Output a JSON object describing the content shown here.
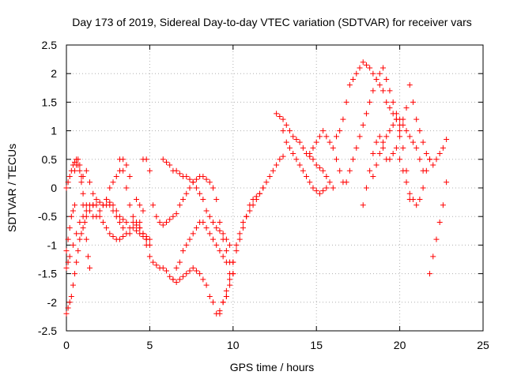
{
  "chart_data": {
    "type": "scatter",
    "title": "Day 173 of 2019, Sidereal Day-to-day VTEC variation (SDTVAR) for receiver vars",
    "xlabel": "GPS time / hours",
    "ylabel": "SDTVAR / TECUs",
    "xlim": [
      0,
      25
    ],
    "ylim": [
      -2.5,
      2.5
    ],
    "x_ticks": [
      "0",
      "5",
      "10",
      "15",
      "20",
      "25"
    ],
    "y_ticks": [
      "2.5",
      "2",
      "1.5",
      "1",
      "0.5",
      "0",
      "-0.5",
      "-1",
      "-1.5",
      "-2",
      "-2.5"
    ],
    "grid": true,
    "marker": "+",
    "color": "#ff0000",
    "series": [
      {
        "x": [
          0.0,
          0.1,
          0.2,
          0.4,
          0.6,
          0.8,
          1.0,
          1.2,
          1.4,
          1.6,
          1.8,
          2.0,
          2.2,
          2.4,
          2.6,
          2.8,
          3.0,
          3.2,
          3.4,
          3.6,
          3.8,
          4.0,
          4.2,
          4.4,
          4.6,
          4.8,
          5.0,
          5.2,
          5.4,
          5.6,
          5.8,
          6.0,
          6.2,
          6.4,
          6.6,
          6.8,
          7.0,
          7.2,
          7.4,
          7.6,
          7.8,
          8.0,
          8.2,
          8.4,
          8.6,
          8.8,
          9.0,
          9.2,
          9.4,
          9.6,
          9.8,
          10.0
        ],
        "y": [
          -1.4,
          -1.3,
          -1.2,
          -1.0,
          -0.8,
          -0.6,
          -0.5,
          -0.4,
          -0.3,
          -0.3,
          -0.2,
          -0.25,
          -0.3,
          -0.2,
          -0.3,
          -0.4,
          -0.5,
          -0.6,
          -0.7,
          -0.8,
          -0.8,
          -0.7,
          -0.75,
          -0.8,
          -0.85,
          -0.9,
          -1.0,
          -1.3,
          -1.35,
          -1.4,
          -1.4,
          -1.45,
          -1.55,
          -1.6,
          -1.65,
          -1.6,
          -1.55,
          -1.5,
          -1.45,
          -1.4,
          -1.45,
          -1.5,
          -1.6,
          -1.7,
          -1.9,
          -2.0,
          -2.2,
          -2.15,
          -2.0,
          -1.9,
          -1.7,
          -1.5
        ]
      },
      {
        "x": [
          0.0,
          0.1,
          0.2,
          0.3,
          0.4,
          0.5,
          0.6,
          0.7,
          0.8,
          0.9,
          1.0,
          1.2,
          1.4,
          1.6,
          1.8,
          2.0,
          2.2,
          2.4,
          2.6,
          2.8,
          3.0,
          3.2,
          3.4,
          3.6,
          3.8,
          4.0,
          4.2,
          4.4,
          4.6,
          4.8,
          5.0
        ],
        "y": [
          0.0,
          0.1,
          0.2,
          0.3,
          0.4,
          0.45,
          0.5,
          0.4,
          0.3,
          0.1,
          -0.1,
          -0.3,
          -0.4,
          -0.5,
          -0.5,
          -0.4,
          -0.3,
          -0.2,
          -0.25,
          -0.3,
          -0.4,
          -0.5,
          -0.55,
          -0.6,
          -0.7,
          -0.6,
          -0.65,
          -0.7,
          -0.8,
          -0.85,
          -0.9
        ]
      },
      {
        "x": [
          0.0,
          0.1,
          0.2,
          0.3,
          0.4,
          0.5,
          0.6,
          0.7,
          0.8,
          0.9,
          1.0,
          1.2,
          1.4,
          1.6
        ],
        "y": [
          -2.2,
          -2.1,
          -2.0,
          -1.9,
          -1.7,
          -1.5,
          -1.3,
          -1.1,
          -0.9,
          -0.8,
          -0.7,
          -0.5,
          -0.4,
          -0.3
        ]
      },
      {
        "x": [
          0.0,
          0.1,
          0.2,
          0.3,
          0.4,
          0.5
        ],
        "y": [
          -1.1,
          -0.9,
          -0.7,
          -0.5,
          -0.4,
          -0.3
        ]
      },
      {
        "x": [
          0.5,
          0.6,
          0.7,
          0.8,
          0.9,
          1.0,
          1.1,
          1.2,
          1.3,
          1.4
        ],
        "y": [
          0.3,
          0.4,
          0.5,
          0.4,
          0.2,
          -0.3,
          -0.6,
          -0.9,
          -1.2,
          -1.4
        ]
      },
      {
        "x": [
          1.0,
          1.2,
          1.4,
          1.6,
          1.8,
          2.0,
          2.2,
          2.4,
          2.6,
          2.8,
          3.0,
          3.2,
          3.4
        ],
        "y": [
          0.2,
          0.3,
          0.1,
          -0.1,
          -0.3,
          -0.5,
          -0.6,
          -0.7,
          -0.8,
          -0.85,
          -0.9,
          -0.9,
          -0.85
        ]
      },
      {
        "x": [
          2.4,
          2.6,
          2.8,
          3.0,
          3.2,
          3.4,
          3.6,
          3.8
        ],
        "y": [
          -0.3,
          0.0,
          0.1,
          0.2,
          0.3,
          0.5,
          0.4,
          0.2
        ]
      },
      {
        "x": [
          3.2,
          3.4,
          3.6,
          3.8,
          4.0,
          4.2,
          4.4,
          4.6,
          4.8
        ],
        "y": [
          0.5,
          0.3,
          0.0,
          -0.3,
          -0.5,
          -0.6,
          -0.7,
          -0.8,
          -0.9
        ]
      },
      {
        "x": [
          4.4,
          4.6,
          4.8,
          5.0
        ],
        "y": [
          -0.6,
          -0.8,
          -1.0,
          -1.2
        ]
      },
      {
        "x": [
          4.2,
          4.4,
          4.6
        ],
        "y": [
          -0.2,
          -0.3,
          -0.4
        ]
      },
      {
        "x": [
          4.6,
          4.8,
          5.0,
          5.2,
          5.4,
          5.6,
          5.8,
          6.0,
          6.2,
          6.4,
          6.6,
          6.8,
          7.0,
          7.2,
          7.4,
          7.6,
          7.8,
          8.0,
          8.2,
          8.4,
          8.6,
          8.8,
          9.0,
          9.2,
          9.4,
          9.6,
          9.8,
          10.0
        ],
        "y": [
          0.5,
          0.5,
          0.3,
          -0.3,
          -0.5,
          -0.6,
          -0.65,
          -0.6,
          -0.55,
          -0.5,
          -0.45,
          -0.3,
          -0.2,
          -0.1,
          0.0,
          0.1,
          0.15,
          0.2,
          0.2,
          0.15,
          0.1,
          0.0,
          -0.2,
          -0.6,
          -0.9,
          -1.1,
          -1.3,
          -1.5
        ]
      },
      {
        "x": [
          5.8,
          6.0,
          6.2,
          6.4,
          6.6,
          6.8,
          7.0,
          7.2,
          7.4,
          7.6,
          7.8,
          8.0,
          8.2,
          8.4,
          8.6,
          8.8,
          9.0,
          9.2,
          9.4,
          9.6,
          9.8
        ],
        "y": [
          0.5,
          0.45,
          0.4,
          0.3,
          0.3,
          0.25,
          0.2,
          0.2,
          0.15,
          0.1,
          0.0,
          -0.1,
          -0.2,
          -0.4,
          -0.5,
          -0.6,
          -0.7,
          -0.75,
          -0.8,
          -0.9,
          -1.0
        ]
      },
      {
        "x": [
          6.4,
          6.6,
          6.8,
          7.0,
          7.2,
          7.4,
          7.6,
          7.8,
          8.0,
          8.2,
          8.4,
          8.6,
          8.8,
          9.0,
          9.2,
          9.4,
          9.6
        ],
        "y": [
          -1.6,
          -1.4,
          -1.3,
          -1.1,
          -1.0,
          -0.9,
          -0.8,
          -0.7,
          -0.6,
          -0.6,
          -0.7,
          -0.8,
          -0.9,
          -1.0,
          -1.1,
          -1.2,
          -1.3
        ]
      },
      {
        "x": [
          9.2,
          9.4,
          9.6,
          9.8,
          10.0,
          10.2,
          10.4,
          10.6,
          10.8,
          11.0,
          11.2,
          11.4,
          11.6,
          11.8,
          12.0,
          12.2,
          12.4,
          12.6,
          12.8,
          13.0
        ],
        "y": [
          -2.2,
          -2.0,
          -1.8,
          -1.5,
          -1.3,
          -1.1,
          -0.9,
          -0.7,
          -0.5,
          -0.3,
          -0.2,
          -0.15,
          -0.1,
          0.0,
          0.1,
          0.2,
          0.3,
          0.4,
          0.5,
          0.55
        ]
      },
      {
        "x": [
          9.6,
          9.8,
          10.0,
          10.2,
          10.4,
          10.6,
          10.8,
          11.0,
          11.2,
          11.4,
          11.6,
          11.8
        ],
        "y": [
          -1.9,
          -1.6,
          -1.3,
          -1.0,
          -0.8,
          -0.6,
          -0.5,
          -0.4,
          -0.3,
          -0.2,
          -0.1,
          0.0
        ]
      },
      {
        "x": [
          12.6,
          12.8,
          13.0,
          13.2,
          13.4,
          13.6,
          13.8,
          14.0,
          14.2,
          14.4,
          14.6,
          14.8,
          15.0,
          15.2,
          15.4,
          15.6,
          15.8,
          16.0
        ],
        "y": [
          1.3,
          1.25,
          1.2,
          1.1,
          1.0,
          0.9,
          0.85,
          0.8,
          0.7,
          0.6,
          0.55,
          0.5,
          0.4,
          0.35,
          0.3,
          0.2,
          0.1,
          0.0
        ]
      },
      {
        "x": [
          13.0,
          13.2,
          13.4,
          13.6,
          13.8,
          14.0,
          14.2,
          14.4,
          14.6,
          14.8,
          15.0,
          15.2,
          15.4,
          15.6
        ],
        "y": [
          1.0,
          0.8,
          0.7,
          0.6,
          0.5,
          0.4,
          0.3,
          0.2,
          0.1,
          0.0,
          -0.05,
          -0.1,
          -0.05,
          0.0
        ]
      },
      {
        "x": [
          14.6,
          14.8,
          15.0,
          15.2,
          15.4,
          15.6,
          15.8,
          16.0,
          16.2,
          16.4,
          16.6
        ],
        "y": [
          0.6,
          0.7,
          0.8,
          0.9,
          1.0,
          0.9,
          0.8,
          0.7,
          0.5,
          0.3,
          0.1
        ]
      },
      {
        "x": [
          16.2,
          16.4,
          16.6,
          16.8,
          17.0,
          17.2,
          17.4,
          17.6,
          17.8,
          18.0,
          18.2,
          18.4,
          18.6,
          18.8,
          19.0,
          19.2,
          19.4,
          19.6,
          19.8,
          20.0
        ],
        "y": [
          0.9,
          1.0,
          1.2,
          1.5,
          1.8,
          1.9,
          2.0,
          2.1,
          2.2,
          2.15,
          2.1,
          2.0,
          1.9,
          1.8,
          1.7,
          1.5,
          1.4,
          1.3,
          1.2,
          1.1
        ]
      },
      {
        "x": [
          16.8,
          17.0,
          17.2,
          17.4,
          17.6,
          17.8,
          18.0,
          18.2,
          18.4,
          18.6,
          18.8,
          19.0,
          19.2,
          19.4,
          19.6,
          19.8,
          20.0,
          20.2,
          20.4,
          20.6,
          20.8,
          21.0,
          21.2,
          21.4
        ],
        "y": [
          0.1,
          0.3,
          0.5,
          0.7,
          0.9,
          1.1,
          1.3,
          1.5,
          1.7,
          1.9,
          2.0,
          2.1,
          1.9,
          1.7,
          1.5,
          1.3,
          1.2,
          1.1,
          1.0,
          0.9,
          0.8,
          0.7,
          0.5,
          0.3
        ]
      },
      {
        "x": [
          17.8,
          18.0,
          18.2,
          18.4,
          18.6,
          18.8,
          19.0,
          19.2,
          19.4,
          19.6,
          19.8,
          20.0,
          20.2,
          20.4
        ],
        "y": [
          -0.3,
          0.0,
          0.3,
          0.6,
          0.8,
          0.9,
          0.7,
          0.5,
          0.5,
          0.6,
          0.7,
          0.9,
          1.2,
          1.4
        ]
      },
      {
        "x": [
          18.4,
          18.6,
          18.8,
          19.0,
          19.2,
          19.4,
          19.6,
          19.8,
          20.0,
          20.2,
          20.4,
          20.6
        ],
        "y": [
          0.2,
          0.4,
          0.6,
          0.8,
          0.9,
          1.0,
          1.1,
          1.2,
          1.0,
          0.7,
          0.3,
          -0.2
        ]
      },
      {
        "x": [
          20.0,
          20.2,
          20.4,
          20.6,
          20.8,
          21.0,
          21.2,
          21.4,
          21.6,
          21.8
        ],
        "y": [
          0.5,
          0.3,
          0.1,
          -0.1,
          -0.2,
          -0.3,
          -0.2,
          0.0,
          0.3,
          0.5
        ]
      },
      {
        "x": [
          20.6,
          20.8,
          21.0,
          21.2,
          21.4,
          21.6,
          21.8,
          22.0,
          22.2,
          22.4,
          22.6,
          22.8
        ],
        "y": [
          1.8,
          1.5,
          1.2,
          1.0,
          0.8,
          0.6,
          0.5,
          0.4,
          0.5,
          0.6,
          0.7,
          0.85
        ]
      },
      {
        "x": [
          21.8,
          22.0,
          22.2,
          22.4,
          22.6,
          22.8
        ],
        "y": [
          -1.5,
          -1.2,
          -0.9,
          -0.6,
          -0.3,
          0.1
        ]
      }
    ]
  }
}
